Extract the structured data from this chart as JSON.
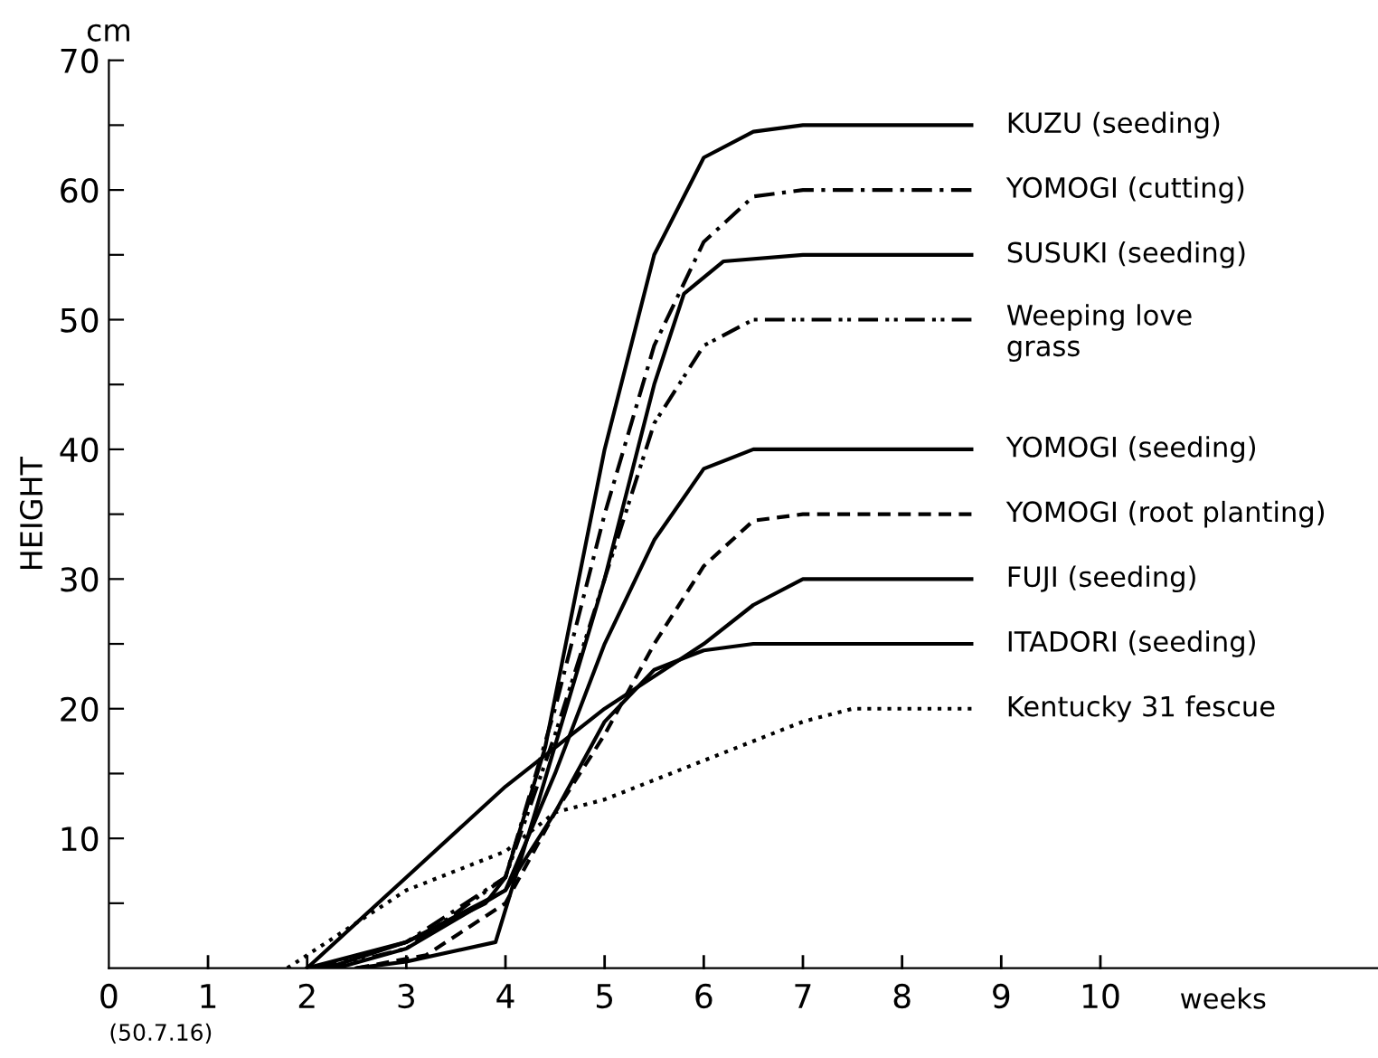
{
  "chart_data": {
    "type": "line",
    "xlabel": "weeks",
    "ylabel": "HEIGHT",
    "annotations": [
      "cm",
      "(50.7.16)"
    ],
    "xlim": [
      0,
      12.8
    ],
    "ylim": [
      0,
      70
    ],
    "xticks": [
      0,
      1,
      2,
      3,
      4,
      5,
      6,
      7,
      8,
      9,
      10
    ],
    "yticks": [
      {
        "value": 5,
        "label": null
      },
      10,
      {
        "value": 15,
        "label": null
      },
      20,
      {
        "value": 25,
        "label": null
      },
      30,
      {
        "value": 35,
        "label": null
      },
      40,
      {
        "value": 45,
        "label": null
      },
      50,
      {
        "value": 55,
        "label": null
      },
      60,
      {
        "value": 65,
        "label": null
      },
      70
    ],
    "grid": false,
    "legend": false,
    "marker": "none",
    "series": [
      {
        "name": "KUZU (seeding)",
        "color": "#000000",
        "line_style": "solid",
        "x": [
          2,
          3,
          3.8,
          4,
          4.4,
          5,
          5.5,
          6,
          6.5,
          7,
          8.7
        ],
        "values": [
          0,
          2,
          5,
          7,
          17,
          40,
          55,
          62.5,
          64.5,
          65,
          65
        ]
      },
      {
        "name": "YOMOGI (cutting)",
        "color": "#000000",
        "line_style": "dashdot",
        "x": [
          2.1,
          3,
          4,
          4.5,
          5,
          5.5,
          6,
          6.5,
          7,
          8.7
        ],
        "values": [
          0,
          2,
          7,
          20,
          35,
          48,
          56,
          59.5,
          60,
          60
        ]
      },
      {
        "name": "SUSUKI (seeding)",
        "color": "#000000",
        "line_style": "solid",
        "x": [
          2.5,
          3,
          3.9,
          4.3,
          5,
          5.5,
          5.8,
          6.2,
          7,
          8.7
        ],
        "values": [
          0,
          0.5,
          2,
          12,
          30,
          45,
          52,
          54.5,
          55,
          55
        ]
      },
      {
        "name": "Weeping love\ngrass",
        "color": "#000000",
        "line_style": "dashdotdot",
        "x": [
          2.2,
          3,
          4,
          4.5,
          5,
          5.5,
          6,
          6.5,
          8.7
        ],
        "values": [
          0,
          1.5,
          7,
          18,
          30,
          42,
          48,
          50,
          50
        ]
      },
      {
        "name": "YOMOGI (seeding)",
        "color": "#000000",
        "line_style": "solid",
        "x": [
          2.2,
          3,
          4,
          4.5,
          5,
          5.5,
          6,
          6.5,
          8.7
        ],
        "values": [
          0,
          2,
          6,
          15,
          25,
          33,
          38.5,
          40,
          40
        ]
      },
      {
        "name": "YOMOGI (root planting)",
        "color": "#000000",
        "line_style": "dashed",
        "x": [
          2.5,
          3.2,
          4,
          4.5,
          5,
          5.5,
          6,
          6.5,
          7,
          8.7
        ],
        "values": [
          0,
          1,
          5,
          12,
          18,
          25,
          31,
          34.5,
          35,
          35
        ]
      },
      {
        "name": "FUJI (seeding)",
        "color": "#000000",
        "line_style": "solid",
        "x": [
          2,
          3,
          4,
          5,
          6,
          6.5,
          7,
          8.7
        ],
        "values": [
          0,
          7,
          14,
          20,
          25,
          28,
          30,
          30
        ]
      },
      {
        "name": "ITADORI (seeding)",
        "color": "#000000",
        "line_style": "solid",
        "x": [
          2.3,
          3,
          4,
          4.5,
          5,
          5.5,
          6,
          6.5,
          8.7
        ],
        "values": [
          0,
          1.5,
          6,
          12,
          19,
          23,
          24.5,
          25,
          25
        ]
      },
      {
        "name": "Kentucky 31 fescue",
        "color": "#000000",
        "line_style": "dotted",
        "x": [
          1.8,
          3,
          4,
          4.5,
          5,
          6,
          7,
          7.5,
          8.7
        ],
        "values": [
          0,
          6,
          9,
          12,
          13,
          16,
          19,
          20,
          20
        ]
      }
    ]
  }
}
